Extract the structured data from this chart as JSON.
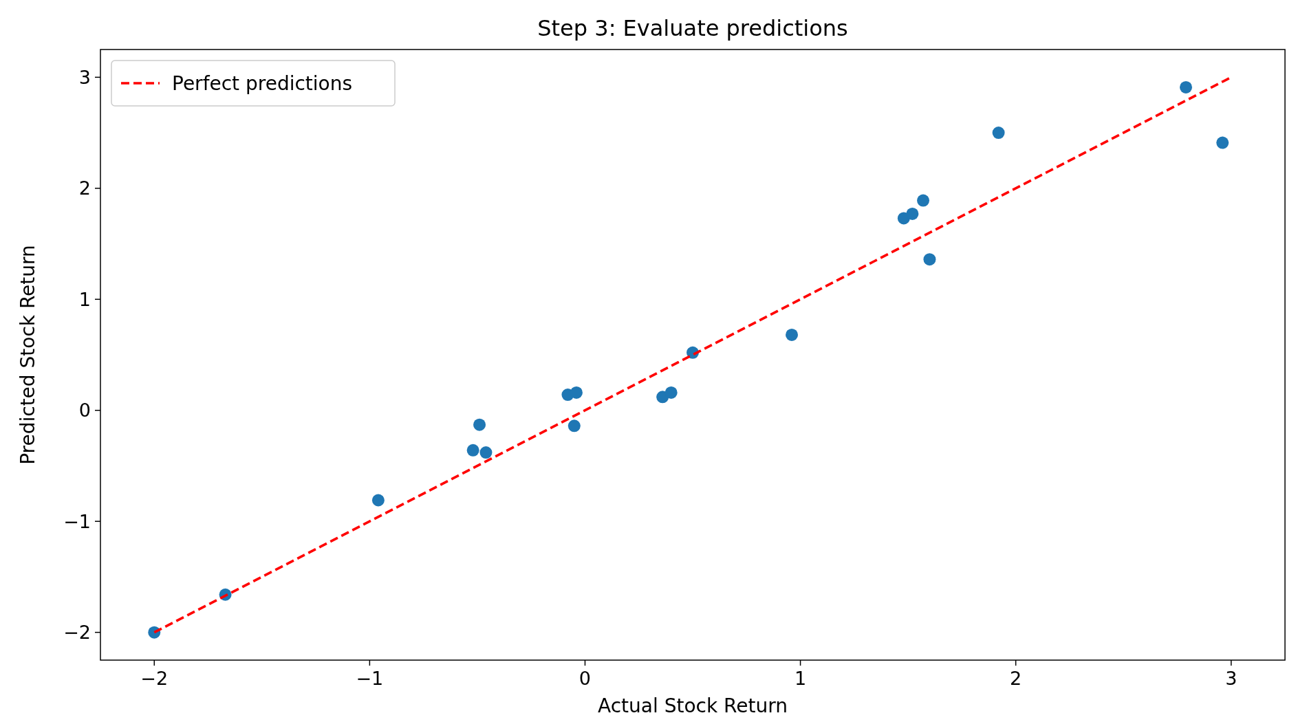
{
  "chart_data": {
    "type": "scatter",
    "title": "Step 3: Evaluate predictions",
    "xlabel": "Actual Stock Return",
    "ylabel": "Predicted Stock Return",
    "xlim": [
      -2.25,
      3.25
    ],
    "ylim": [
      -2.25,
      3.25
    ],
    "xticks": [
      {
        "value": -2,
        "label": "−2"
      },
      {
        "value": -1,
        "label": "−1"
      },
      0,
      1,
      2,
      3
    ],
    "yticks": [
      {
        "value": -2,
        "label": "−2"
      },
      {
        "value": -1,
        "label": "−1"
      },
      0,
      1,
      2,
      3
    ],
    "legend": "top left",
    "grid": false,
    "series": [
      {
        "color": "#1f77b4",
        "marker": "circle",
        "x": [
          -2,
          -1.67,
          -0.96,
          -0.49,
          -0.52,
          -0.46,
          -0.08,
          -0.04,
          -0.05,
          0.36,
          0.4,
          0.5,
          0.96,
          1.48,
          1.52,
          1.57,
          1.6,
          1.92,
          2.79,
          2.96
        ],
        "values": [
          -2,
          -1.66,
          -0.81,
          -0.13,
          -0.36,
          -0.38,
          0.14,
          0.16,
          -0.14,
          0.12,
          0.16,
          0.52,
          0.68,
          1.73,
          1.77,
          1.89,
          1.36,
          2.5,
          2.91,
          2.41
        ]
      },
      {
        "type": "line",
        "name": "Perfect predictions",
        "color": "#ff0000",
        "line_style": "dashed",
        "marker": "none",
        "x": [
          -2,
          3
        ],
        "values": [
          -2,
          3
        ]
      }
    ]
  }
}
